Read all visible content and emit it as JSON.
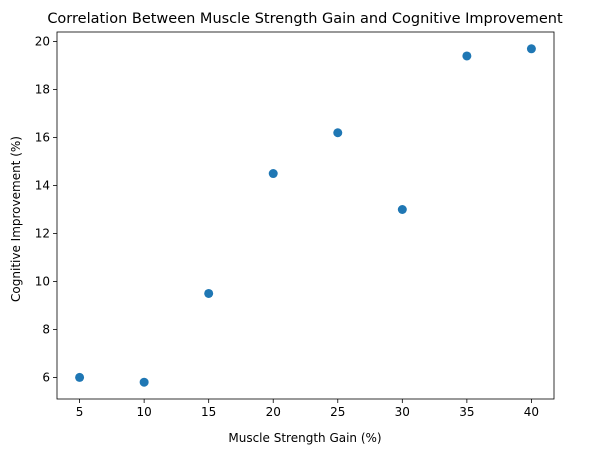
{
  "chart_data": {
    "type": "scatter",
    "title": "Correlation Between Muscle Strength Gain and Cognitive Improvement",
    "xlabel": "Muscle Strength Gain (%)",
    "ylabel": "Cognitive Improvement (%)",
    "x": [
      5,
      10,
      15,
      20,
      25,
      30,
      35,
      40
    ],
    "y": [
      6.0,
      5.8,
      9.5,
      14.5,
      16.2,
      13.0,
      19.4,
      19.7
    ],
    "xlim": [
      3.25,
      41.75
    ],
    "ylim": [
      5.1,
      20.4
    ],
    "xticks": [
      5,
      10,
      15,
      20,
      25,
      30,
      35,
      40
    ],
    "yticks": [
      6,
      8,
      10,
      12,
      14,
      16,
      18,
      20
    ],
    "grid": false,
    "marker_color": "#1f77b4"
  }
}
